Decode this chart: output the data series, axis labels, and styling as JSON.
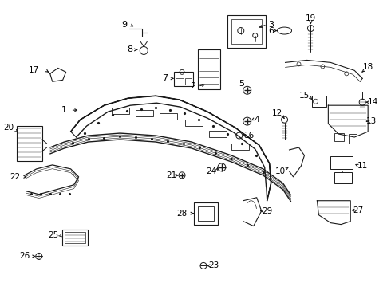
{
  "background_color": "#ffffff",
  "line_color": "#1a1a1a",
  "text_color": "#000000",
  "figsize": [
    4.9,
    3.6
  ],
  "dpi": 100
}
